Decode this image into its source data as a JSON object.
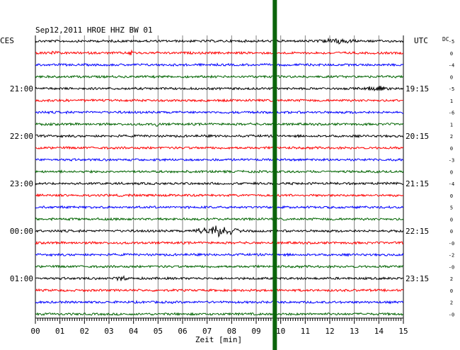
{
  "header": {
    "title": "Sep12,2011   HROE HHZ BW 01",
    "left_zone": "CES",
    "right_zone": "UTC",
    "dc_label": "DC"
  },
  "colors": {
    "trace_colors": [
      "#000000",
      "#ff0000",
      "#0000ff",
      "#006400"
    ],
    "grid": "#808080",
    "marker": "#0b640b"
  },
  "chart_data": {
    "type": "line",
    "title": "Sep12,2011   HROE HHZ BW 01",
    "xlabel": "Zeit [min]",
    "ylabel": "",
    "xlim": [
      0,
      15
    ],
    "x_ticks": [
      "00",
      "01",
      "02",
      "03",
      "04",
      "05",
      "06",
      "07",
      "08",
      "09",
      "10",
      "11",
      "12",
      "13",
      "14",
      "15"
    ],
    "trace_count": 24,
    "left_hour_labels": [
      {
        "trace": 4,
        "label": "21:00"
      },
      {
        "trace": 8,
        "label": "22:00"
      },
      {
        "trace": 12,
        "label": "23:00"
      },
      {
        "trace": 16,
        "label": "00:00"
      },
      {
        "trace": 20,
        "label": "01:00"
      }
    ],
    "right_hour_labels": [
      {
        "trace": 4,
        "label": "19:15"
      },
      {
        "trace": 8,
        "label": "20:15"
      },
      {
        "trace": 12,
        "label": "21:15"
      },
      {
        "trace": 16,
        "label": "22:15"
      },
      {
        "trace": 20,
        "label": "23:15"
      }
    ],
    "dc_offsets": [
      "-5",
      "0",
      "-4",
      "0",
      "-5",
      "1",
      "-6",
      "1",
      "2",
      "0",
      "-3",
      "0",
      "-4",
      "0",
      "5",
      "0",
      "0",
      "-0",
      "-2",
      "-0",
      "2",
      "0",
      "2",
      "-0"
    ],
    "events": [
      {
        "trace": 0,
        "x_start": 11.2,
        "x_end": 13.3,
        "amplitude": 2.5
      },
      {
        "trace": 1,
        "x_start": 0.5,
        "x_end": 1.0,
        "amplitude": 2
      },
      {
        "trace": 1,
        "x_start": 3.7,
        "x_end": 4.1,
        "amplitude": 2
      },
      {
        "trace": 4,
        "x_start": 13.3,
        "x_end": 14.5,
        "amplitude": 3
      },
      {
        "trace": 7,
        "x_start": 4.8,
        "x_end": 5.1,
        "amplitude": 2
      },
      {
        "trace": 16,
        "x_start": 6.3,
        "x_end": 8.5,
        "amplitude": 7
      },
      {
        "trace": 20,
        "x_start": 3.2,
        "x_end": 3.8,
        "amplitude": 3
      }
    ],
    "marker_x": 9.5
  }
}
